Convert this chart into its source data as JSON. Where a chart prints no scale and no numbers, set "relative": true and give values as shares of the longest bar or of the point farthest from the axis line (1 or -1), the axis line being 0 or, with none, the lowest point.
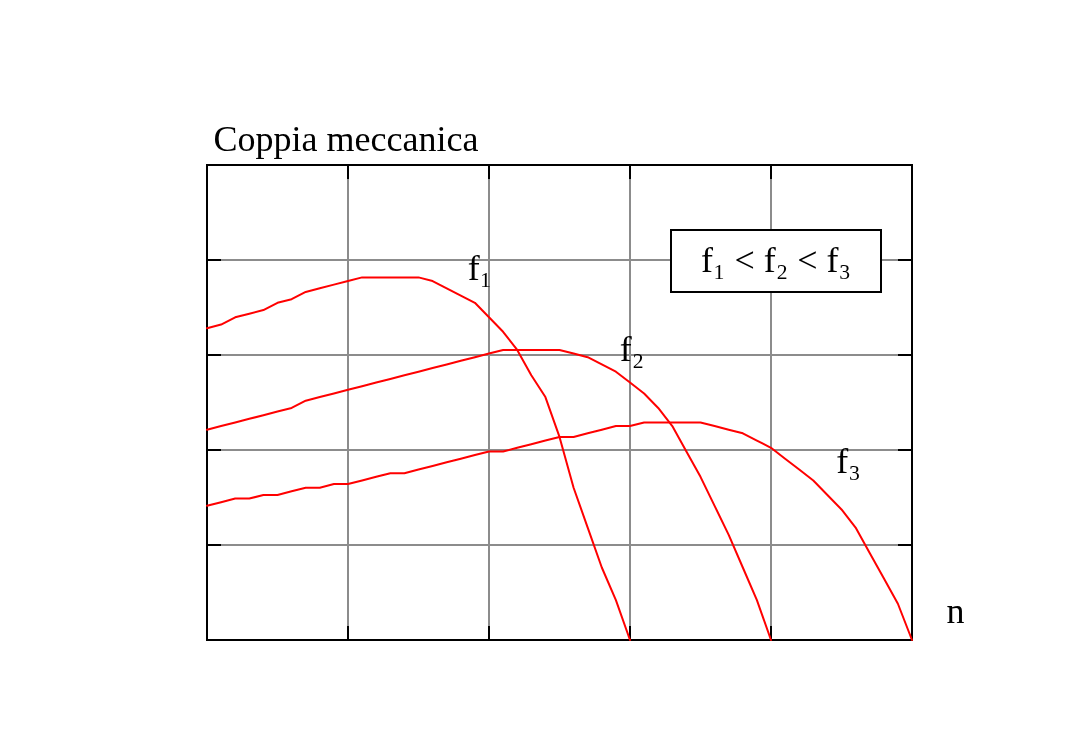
{
  "chart_data": {
    "type": "line",
    "ylabel": "Coppia meccanica",
    "xlabel": "n",
    "annotations": [
      "f₁ < f₂ < f₃"
    ],
    "relative": true,
    "grid": true,
    "line_style": "solid",
    "categories": [
      null,
      null,
      null,
      null,
      null,
      null,
      null,
      null,
      null,
      null,
      null,
      null,
      null,
      null,
      null,
      null,
      null,
      null,
      null,
      null,
      null,
      null,
      null,
      null,
      null,
      null,
      null,
      null,
      null,
      null,
      null,
      null,
      null,
      null,
      null,
      null,
      null,
      null,
      null,
      null,
      null,
      null,
      null,
      null,
      null,
      null,
      null,
      null,
      null,
      null,
      null
    ],
    "series": [
      {
        "name": "f₁",
        "color": "#ff0000",
        "values": [
          0.86,
          0.87,
          0.89,
          0.9,
          0.91,
          0.93,
          0.94,
          0.96,
          0.97,
          0.98,
          0.99,
          1,
          1,
          1,
          1,
          1,
          0.99,
          0.97,
          0.95,
          0.93,
          0.89,
          0.85,
          0.8,
          0.73,
          0.67,
          0.56,
          0.42,
          0.31,
          0.2,
          0.11,
          0,
          null,
          null,
          null,
          null,
          null,
          null,
          null,
          null,
          null,
          null,
          null,
          null,
          null,
          null,
          null,
          null,
          null,
          null,
          null,
          null
        ]
      },
      {
        "name": "f₂",
        "color": "#ff0000",
        "values": [
          0.58,
          0.59,
          0.6,
          0.61,
          0.62,
          0.63,
          0.64,
          0.66,
          0.67,
          0.68,
          0.69,
          0.7,
          0.71,
          0.72,
          0.73,
          0.74,
          0.75,
          0.76,
          0.77,
          0.78,
          0.79,
          0.8,
          0.8,
          0.8,
          0.8,
          0.8,
          0.79,
          0.78,
          0.76,
          0.74,
          0.71,
          0.68,
          0.64,
          0.59,
          0.52,
          0.45,
          0.37,
          0.29,
          0.2,
          0.11,
          0,
          null,
          null,
          null,
          null,
          null,
          null,
          null,
          null,
          null,
          null
        ]
      },
      {
        "name": "f₃",
        "color": "#ff0000",
        "values": [
          0.37,
          0.38,
          0.39,
          0.39,
          0.4,
          0.4,
          0.41,
          0.42,
          0.42,
          0.43,
          0.43,
          0.44,
          0.45,
          0.46,
          0.46,
          0.47,
          0.48,
          0.49,
          0.5,
          0.51,
          0.52,
          0.52,
          0.53,
          0.54,
          0.55,
          0.56,
          0.56,
          0.57,
          0.58,
          0.59,
          0.59,
          0.6,
          0.6,
          0.6,
          0.6,
          0.6,
          0.59,
          0.58,
          0.57,
          0.55,
          0.53,
          0.5,
          0.47,
          0.44,
          0.4,
          0.36,
          0.31,
          0.24,
          0.17,
          0.1,
          0
        ]
      }
    ]
  }
}
